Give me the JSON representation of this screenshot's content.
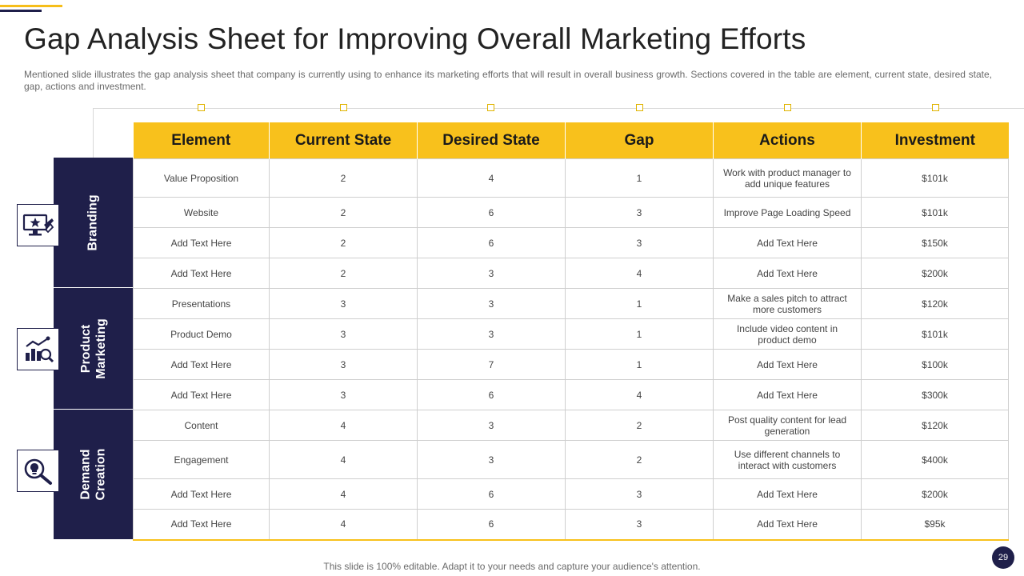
{
  "slide": {
    "title": "Gap Analysis Sheet for Improving Overall Marketing Efforts",
    "subtitle": "Mentioned slide illustrates the gap analysis sheet that company is currently using to enhance its marketing efforts that will result in overall  business growth. Sections covered  in the table are element, current state, desired state, gap, actions and investment.",
    "footer": "This slide is 100% editable. Adapt it to your needs and capture your audience's attention.",
    "page_number": "29"
  },
  "colors": {
    "accent": "#f8c11c",
    "navy": "#1f1f4a"
  },
  "table": {
    "headers": [
      "Element",
      "Current State",
      "Desired State",
      "Gap",
      "Actions",
      "Investment"
    ],
    "rows": [
      [
        "Value Proposition",
        "2",
        "4",
        "1",
        "Work with product manager to add unique features",
        "$101k"
      ],
      [
        "Website",
        "2",
        "6",
        "3",
        "Improve Page Loading Speed",
        "$101k"
      ],
      [
        "Add Text Here",
        "2",
        "6",
        "3",
        "Add Text Here",
        "$150k"
      ],
      [
        "Add Text Here",
        "2",
        "3",
        "4",
        "Add Text Here",
        "$200k"
      ],
      [
        "Presentations",
        "3",
        "3",
        "1",
        "Make a sales pitch to attract more customers",
        "$120k"
      ],
      [
        "Product Demo",
        "3",
        "3",
        "1",
        "Include video content in product demo",
        "$101k"
      ],
      [
        "Add Text Here",
        "3",
        "7",
        "1",
        "Add Text Here",
        "$100k"
      ],
      [
        "Add Text Here",
        "3",
        "6",
        "4",
        "Add Text Here",
        "$300k"
      ],
      [
        "Content",
        "4",
        "3",
        "2",
        "Post quality content for lead generation",
        "$120k"
      ],
      [
        "Engagement",
        "4",
        "3",
        "2",
        "Use different channels to interact with customers",
        "$400k"
      ],
      [
        "Add Text Here",
        "4",
        "6",
        "3",
        "Add Text Here",
        "$200k"
      ],
      [
        "Add Text Here",
        "4",
        "6",
        "3",
        "Add Text Here",
        "$95k"
      ]
    ]
  },
  "categories": [
    {
      "label_line1": "Branding",
      "label_line2": "",
      "icon": "monitor-star-icon"
    },
    {
      "label_line1": "Product",
      "label_line2": "Marketing",
      "icon": "growth-chart-icon"
    },
    {
      "label_line1": "Demand",
      "label_line2": "Creation",
      "icon": "search-lightbulb-icon"
    }
  ]
}
